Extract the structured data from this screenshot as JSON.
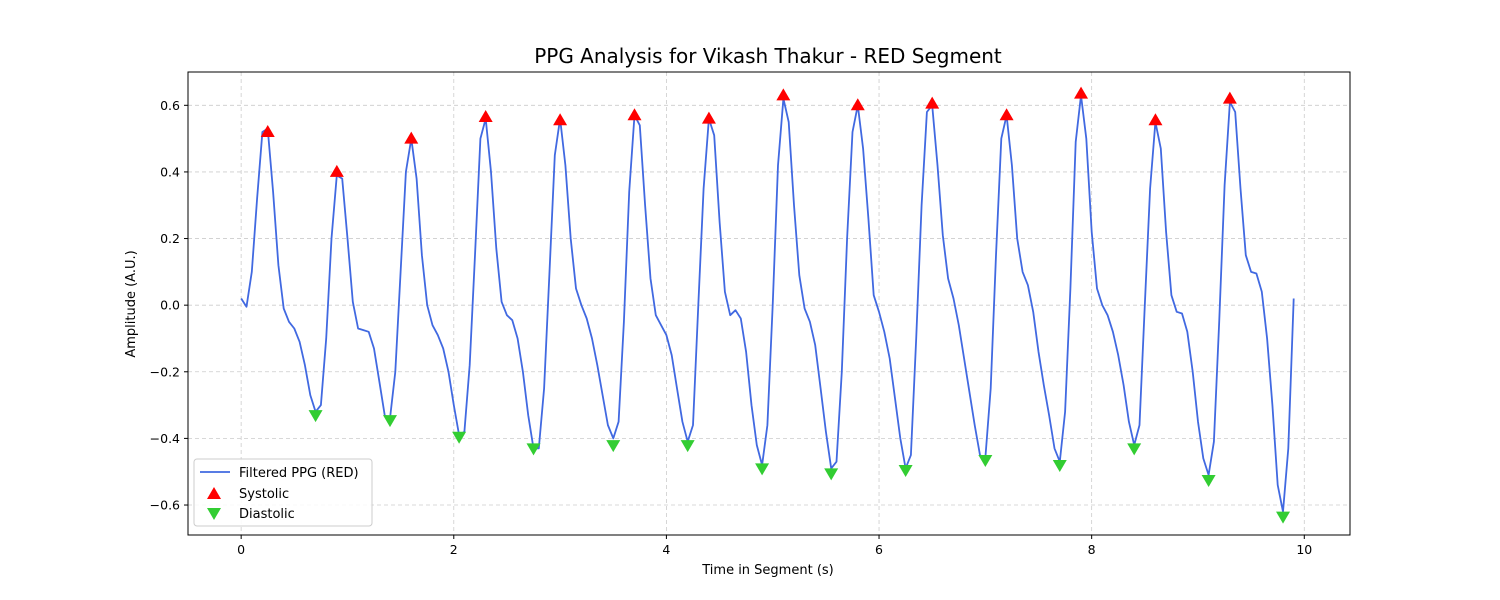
{
  "chart_data": {
    "type": "line",
    "title": "PPG Analysis for Vikash Thakur - RED Segment",
    "xlabel": "Time in Segment (s)",
    "ylabel": "Amplitude (A.U.)",
    "xlim": [
      -0.5,
      10.43
    ],
    "ylim": [
      -0.69,
      0.7
    ],
    "xticks": [
      0,
      2,
      4,
      6,
      8,
      10
    ],
    "yticks": [
      -0.6,
      -0.4,
      -0.2,
      0.0,
      0.2,
      0.4,
      0.6
    ],
    "ytick_labels": [
      "−0.6",
      "−0.4",
      "−0.2",
      "0.0",
      "0.2",
      "0.4",
      "0.6"
    ],
    "grid": true,
    "legend_position": "lower-left",
    "colors": {
      "line": "#4169e1",
      "systolic": "#ff0000",
      "diastolic": "#32cd32"
    },
    "series": [
      {
        "name": "Filtered PPG (RED)",
        "kind": "line",
        "x": [
          0.0,
          0.05,
          0.1,
          0.15,
          0.2,
          0.25,
          0.3,
          0.35,
          0.4,
          0.45,
          0.5,
          0.55,
          0.6,
          0.65,
          0.7,
          0.75,
          0.8,
          0.85,
          0.9,
          0.95,
          1.0,
          1.05,
          1.1,
          1.15,
          1.2,
          1.25,
          1.3,
          1.35,
          1.4,
          1.45,
          1.5,
          1.55,
          1.6,
          1.65,
          1.7,
          1.75,
          1.8,
          1.85,
          1.9,
          1.95,
          2.0,
          2.05,
          2.1,
          2.15,
          2.2,
          2.25,
          2.3,
          2.35,
          2.4,
          2.45,
          2.5,
          2.55,
          2.6,
          2.65,
          2.7,
          2.75,
          2.8,
          2.85,
          2.9,
          2.95,
          3.0,
          3.05,
          3.1,
          3.15,
          3.2,
          3.25,
          3.3,
          3.35,
          3.4,
          3.45,
          3.5,
          3.55,
          3.6,
          3.65,
          3.7,
          3.75,
          3.8,
          3.85,
          3.9,
          3.95,
          4.0,
          4.05,
          4.1,
          4.15,
          4.2,
          4.25,
          4.3,
          4.35,
          4.4,
          4.45,
          4.5,
          4.55,
          4.6,
          4.65,
          4.7,
          4.75,
          4.8,
          4.85,
          4.9,
          4.95,
          5.0,
          5.05,
          5.1,
          5.15,
          5.2,
          5.25,
          5.3,
          5.35,
          5.4,
          5.45,
          5.5,
          5.55,
          5.6,
          5.65,
          5.7,
          5.75,
          5.8,
          5.85,
          5.9,
          5.95,
          6.0,
          6.05,
          6.1,
          6.15,
          6.2,
          6.25,
          6.3,
          6.35,
          6.4,
          6.45,
          6.5,
          6.55,
          6.6,
          6.65,
          6.7,
          6.75,
          6.8,
          6.85,
          6.9,
          6.95,
          7.0,
          7.05,
          7.1,
          7.15,
          7.2,
          7.25,
          7.3,
          7.35,
          7.4,
          7.45,
          7.5,
          7.55,
          7.6,
          7.65,
          7.7,
          7.75,
          7.8,
          7.85,
          7.9,
          7.95,
          8.0,
          8.05,
          8.1,
          8.15,
          8.2,
          8.25,
          8.3,
          8.35,
          8.4,
          8.45,
          8.5,
          8.55,
          8.6,
          8.65,
          8.7,
          8.75,
          8.8,
          8.85,
          8.9,
          8.95,
          9.0,
          9.05,
          9.1,
          9.15,
          9.2,
          9.25,
          9.3,
          9.35,
          9.4,
          9.45,
          9.5,
          9.55,
          9.6,
          9.65,
          9.7,
          9.75,
          9.8,
          9.85,
          9.9
        ],
        "y": [
          0.02,
          -0.005,
          0.1,
          0.32,
          0.52,
          0.53,
          0.34,
          0.12,
          -0.01,
          -0.05,
          -0.07,
          -0.11,
          -0.18,
          -0.27,
          -0.32,
          -0.3,
          -0.1,
          0.2,
          0.39,
          0.38,
          0.2,
          0.01,
          -0.07,
          -0.075,
          -0.08,
          -0.13,
          -0.23,
          -0.33,
          -0.34,
          -0.2,
          0.1,
          0.4,
          0.5,
          0.38,
          0.15,
          0.0,
          -0.06,
          -0.09,
          -0.13,
          -0.2,
          -0.3,
          -0.39,
          -0.38,
          -0.18,
          0.15,
          0.5,
          0.56,
          0.4,
          0.17,
          0.01,
          -0.03,
          -0.045,
          -0.1,
          -0.2,
          -0.33,
          -0.43,
          -0.43,
          -0.25,
          0.1,
          0.45,
          0.56,
          0.42,
          0.2,
          0.05,
          0.0,
          -0.04,
          -0.1,
          -0.18,
          -0.27,
          -0.36,
          -0.4,
          -0.35,
          -0.05,
          0.34,
          0.57,
          0.54,
          0.3,
          0.08,
          -0.03,
          -0.06,
          -0.09,
          -0.15,
          -0.25,
          -0.35,
          -0.41,
          -0.36,
          0.0,
          0.35,
          0.56,
          0.51,
          0.25,
          0.04,
          -0.03,
          -0.015,
          -0.04,
          -0.14,
          -0.3,
          -0.42,
          -0.48,
          -0.36,
          0.0,
          0.42,
          0.62,
          0.55,
          0.3,
          0.09,
          -0.01,
          -0.05,
          -0.12,
          -0.25,
          -0.38,
          -0.49,
          -0.47,
          -0.2,
          0.2,
          0.52,
          0.6,
          0.47,
          0.26,
          0.03,
          -0.02,
          -0.08,
          -0.16,
          -0.28,
          -0.4,
          -0.49,
          -0.45,
          -0.1,
          0.3,
          0.58,
          0.6,
          0.42,
          0.21,
          0.08,
          0.02,
          -0.06,
          -0.16,
          -0.26,
          -0.36,
          -0.45,
          -0.46,
          -0.25,
          0.15,
          0.5,
          0.57,
          0.42,
          0.2,
          0.1,
          0.06,
          -0.02,
          -0.14,
          -0.24,
          -0.33,
          -0.43,
          -0.47,
          -0.32,
          0.05,
          0.49,
          0.63,
          0.5,
          0.22,
          0.05,
          0.0,
          -0.03,
          -0.08,
          -0.15,
          -0.24,
          -0.35,
          -0.42,
          -0.36,
          0.0,
          0.35,
          0.55,
          0.47,
          0.22,
          0.03,
          -0.02,
          -0.025,
          -0.08,
          -0.2,
          -0.35,
          -0.46,
          -0.51,
          -0.41,
          -0.05,
          0.36,
          0.61,
          0.58,
          0.35,
          0.15,
          0.1,
          0.095,
          0.04,
          -0.1,
          -0.3,
          -0.54,
          -0.62,
          -0.43,
          0.02
        ]
      },
      {
        "name": "Systolic",
        "kind": "marker-up",
        "x": [
          0.25,
          0.9,
          1.6,
          2.3,
          3.0,
          3.7,
          4.4,
          5.1,
          5.8,
          6.5,
          7.2,
          7.9,
          8.6,
          9.3
        ],
        "y": [
          0.52,
          0.4,
          0.5,
          0.565,
          0.555,
          0.57,
          0.56,
          0.63,
          0.6,
          0.605,
          0.57,
          0.635,
          0.555,
          0.62
        ]
      },
      {
        "name": "Diastolic",
        "kind": "marker-down",
        "x": [
          0.7,
          1.4,
          2.05,
          2.75,
          3.5,
          4.2,
          4.9,
          5.55,
          6.25,
          7.0,
          7.7,
          8.4,
          9.1,
          9.8
        ],
        "y": [
          -0.33,
          -0.345,
          -0.395,
          -0.43,
          -0.42,
          -0.42,
          -0.49,
          -0.505,
          -0.495,
          -0.465,
          -0.48,
          -0.43,
          -0.525,
          -0.635
        ]
      }
    ]
  }
}
